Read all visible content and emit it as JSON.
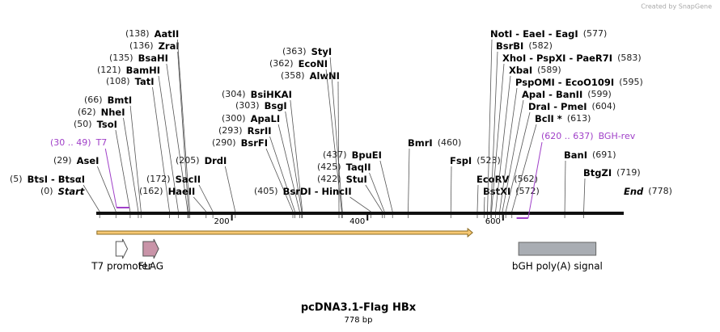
{
  "watermark": "Created by SnapGene",
  "title": "pcDNA3.1-Flag HBx",
  "subtitle": "778 bp",
  "map": {
    "length": 778,
    "ticks": [
      200,
      400,
      600
    ],
    "start": {
      "position": 0,
      "position_label": "(0)",
      "name": "Start"
    },
    "end": {
      "position": 778,
      "position_label": "(778)",
      "name": "End"
    }
  },
  "sites": [
    {
      "position": 5,
      "position_label": "(5)",
      "name": "BtsI - BtsαI"
    },
    {
      "position": 29,
      "position_label": "(29)",
      "name": "AseI"
    },
    {
      "position": 50,
      "position_label": "(50)",
      "name": "TsoI"
    },
    {
      "position": 62,
      "position_label": "(62)",
      "name": "NheI"
    },
    {
      "position": 66,
      "position_label": "(66)",
      "name": "BmtI"
    },
    {
      "position": 108,
      "position_label": "(108)",
      "name": "TatI"
    },
    {
      "position": 121,
      "position_label": "(121)",
      "name": "BamHI"
    },
    {
      "position": 135,
      "position_label": "(135)",
      "name": "BsaHI"
    },
    {
      "position": 136,
      "position_label": "(136)",
      "name": "ZraI"
    },
    {
      "position": 138,
      "position_label": "(138)",
      "name": "AatII"
    },
    {
      "position": 162,
      "position_label": "(162)",
      "name": "HaeII"
    },
    {
      "position": 172,
      "position_label": "(172)",
      "name": "SacII"
    },
    {
      "position": 205,
      "position_label": "(205)",
      "name": "DrdI"
    },
    {
      "position": 290,
      "position_label": "(290)",
      "name": "BsrFI"
    },
    {
      "position": 293,
      "position_label": "(293)",
      "name": "RsrII"
    },
    {
      "position": 300,
      "position_label": "(300)",
      "name": "ApaLI"
    },
    {
      "position": 303,
      "position_label": "(303)",
      "name": "BsgI"
    },
    {
      "position": 304,
      "position_label": "(304)",
      "name": "BsiHKAI"
    },
    {
      "position": 358,
      "position_label": "(358)",
      "name": "AlwNI"
    },
    {
      "position": 362,
      "position_label": "(362)",
      "name": "EcoNI"
    },
    {
      "position": 363,
      "position_label": "(363)",
      "name": "StyI"
    },
    {
      "position": 405,
      "position_label": "(405)",
      "name": "BsrDI - HincII"
    },
    {
      "position": 422,
      "position_label": "(422)",
      "name": "StuI"
    },
    {
      "position": 425,
      "position_label": "(425)",
      "name": "TaqII"
    },
    {
      "position": 437,
      "position_label": "(437)",
      "name": "BpuEI"
    },
    {
      "position": 460,
      "position_label": "(460)",
      "name": "BmrI"
    },
    {
      "position": 523,
      "position_label": "(523)",
      "name": "FspI"
    },
    {
      "position": 562,
      "position_label": "(562)",
      "name": "EcoRV"
    },
    {
      "position": 572,
      "position_label": "(572)",
      "name": "BstXI"
    },
    {
      "position": 577,
      "position_label": "(577)",
      "name": "NotI - EaeI - EagI"
    },
    {
      "position": 582,
      "position_label": "(582)",
      "name": "BsrBI"
    },
    {
      "position": 583,
      "position_label": "(583)",
      "name": "XhoI - PspXI - PaeR7I"
    },
    {
      "position": 589,
      "position_label": "(589)",
      "name": "XbaI"
    },
    {
      "position": 595,
      "position_label": "(595)",
      "name": "PspOMI - EcoO109I"
    },
    {
      "position": 599,
      "position_label": "(599)",
      "name": "ApaI - BanII"
    },
    {
      "position": 604,
      "position_label": "(604)",
      "name": "DraI - PmeI"
    },
    {
      "position": 613,
      "position_label": "(613)",
      "name": "BclI *"
    },
    {
      "position": 691,
      "position_label": "(691)",
      "name": "BanI"
    },
    {
      "position": 719,
      "position_label": "(719)",
      "name": "BtgZI"
    }
  ],
  "primers": [
    {
      "start": 30,
      "end": 49,
      "range_label": "(30 .. 49)",
      "name": "T7"
    },
    {
      "start": 620,
      "end": 637,
      "range_label": "(620 .. 637)",
      "name": "BGH-rev"
    }
  ],
  "features": [
    {
      "start": 1,
      "end": 555,
      "shape": "bar-arrow",
      "color": "#f7c873"
    },
    {
      "start": 29,
      "end": 46,
      "shape": "arrow",
      "color": "#ffffff",
      "name": "T7 promoter"
    },
    {
      "start": 69,
      "end": 92,
      "shape": "arrow",
      "color": "#c994a8",
      "name": "FLAG"
    },
    {
      "start": 623,
      "end": 737,
      "shape": "box",
      "color": "#a9adb3",
      "name": "bGH poly(A) signal"
    }
  ]
}
